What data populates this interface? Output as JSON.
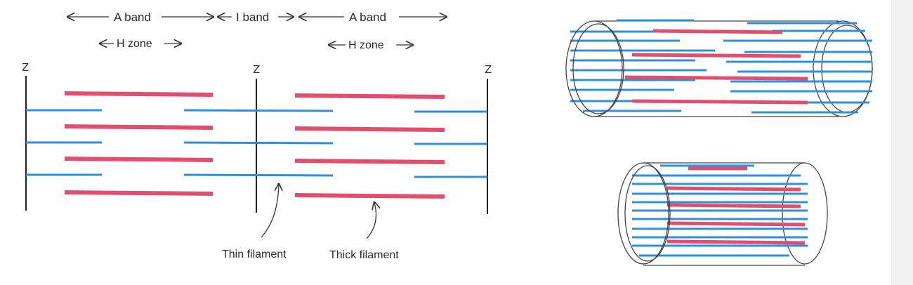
{
  "labels": {
    "a_band_left": "A band",
    "i_band": "I band",
    "a_band_right": "A band",
    "h_zone_left": "H zone",
    "h_zone_right": "H zone",
    "z_left": "Z",
    "z_middle": "Z",
    "z_right": "Z",
    "thin_filament": "Thin filament",
    "thick_filament": "Thick filament"
  },
  "colors": {
    "thin_filament": "#2f8fd8",
    "thick_filament": "#e0506e",
    "z_line": "#222222"
  }
}
